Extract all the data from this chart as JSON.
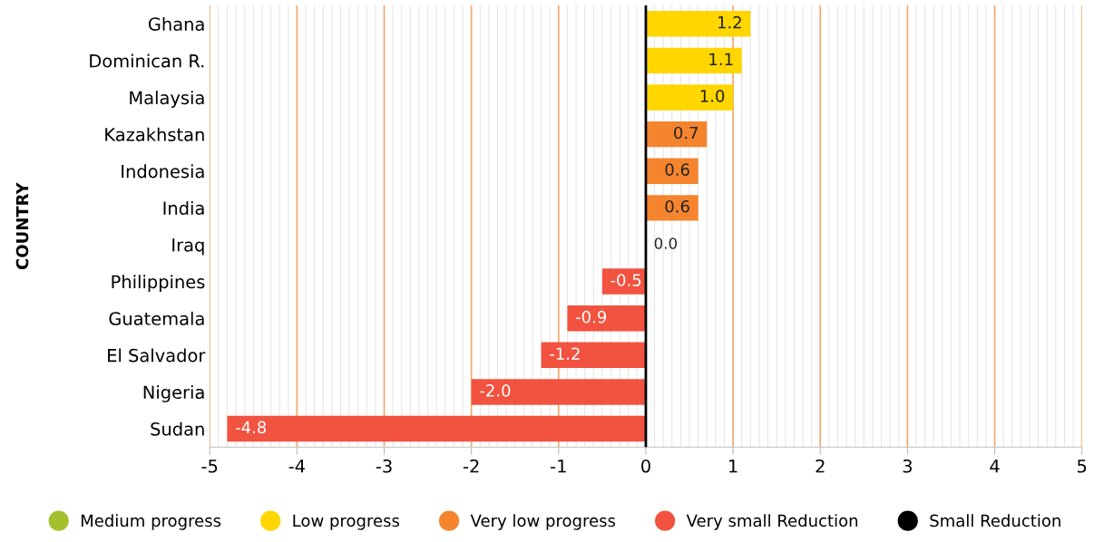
{
  "chart_data": {
    "type": "bar",
    "orientation": "horizontal",
    "ylabel": "COUNTRY",
    "categories": [
      "Ghana",
      "Dominican R.",
      "Malaysia",
      "Kazakhstan",
      "Indonesia",
      "India",
      "Iraq",
      "Philippines",
      "Guatemala",
      "El Salvador",
      "Nigeria",
      "Sudan"
    ],
    "series": [
      {
        "name": "Medium progress",
        "color": "#a4c12d",
        "values": [
          null,
          null,
          null,
          null,
          null,
          null,
          null,
          null,
          null,
          null,
          null,
          null
        ]
      },
      {
        "name": "Low progress",
        "color": "#ffd600",
        "values": [
          1.2,
          1.1,
          1.0,
          null,
          null,
          null,
          null,
          null,
          null,
          null,
          null,
          null
        ],
        "value_labels": [
          "1.2",
          "1.1",
          "1.0",
          null,
          null,
          null,
          null,
          null,
          null,
          null,
          null,
          null
        ]
      },
      {
        "name": "Very low progress",
        "color": "#f5842e",
        "values": [
          null,
          null,
          null,
          0.7,
          0.6,
          0.6,
          null,
          null,
          null,
          null,
          null,
          null
        ],
        "value_labels": [
          null,
          null,
          null,
          "0.7",
          "0.6",
          "0.6",
          null,
          null,
          null,
          null,
          null,
          null
        ]
      },
      {
        "name": "Very small Reduction",
        "color": "#f15340",
        "values": [
          null,
          null,
          null,
          null,
          null,
          null,
          null,
          -0.5,
          -0.9,
          -1.2,
          -2.0,
          -4.8
        ],
        "value_labels": [
          null,
          null,
          null,
          null,
          null,
          null,
          null,
          "-0.5",
          "-0.9",
          "-1.2",
          "-2.0",
          "-4.8"
        ]
      },
      {
        "name": "Small Reduction",
        "color": "#000000",
        "values": [
          null,
          null,
          null,
          null,
          null,
          null,
          0.0,
          null,
          null,
          null,
          null,
          null
        ],
        "value_labels": [
          null,
          null,
          null,
          null,
          null,
          null,
          "0.0",
          null,
          null,
          null,
          null,
          null
        ]
      }
    ],
    "xlim": [
      -5,
      5
    ],
    "xticks": [
      -5,
      -4,
      -3,
      -2,
      -1,
      0,
      1,
      2,
      3,
      4,
      5
    ],
    "grid": "x",
    "legend": "bottom",
    "ref_lines": [
      {
        "axis": "x",
        "value": 0,
        "color": "#000000"
      }
    ]
  }
}
